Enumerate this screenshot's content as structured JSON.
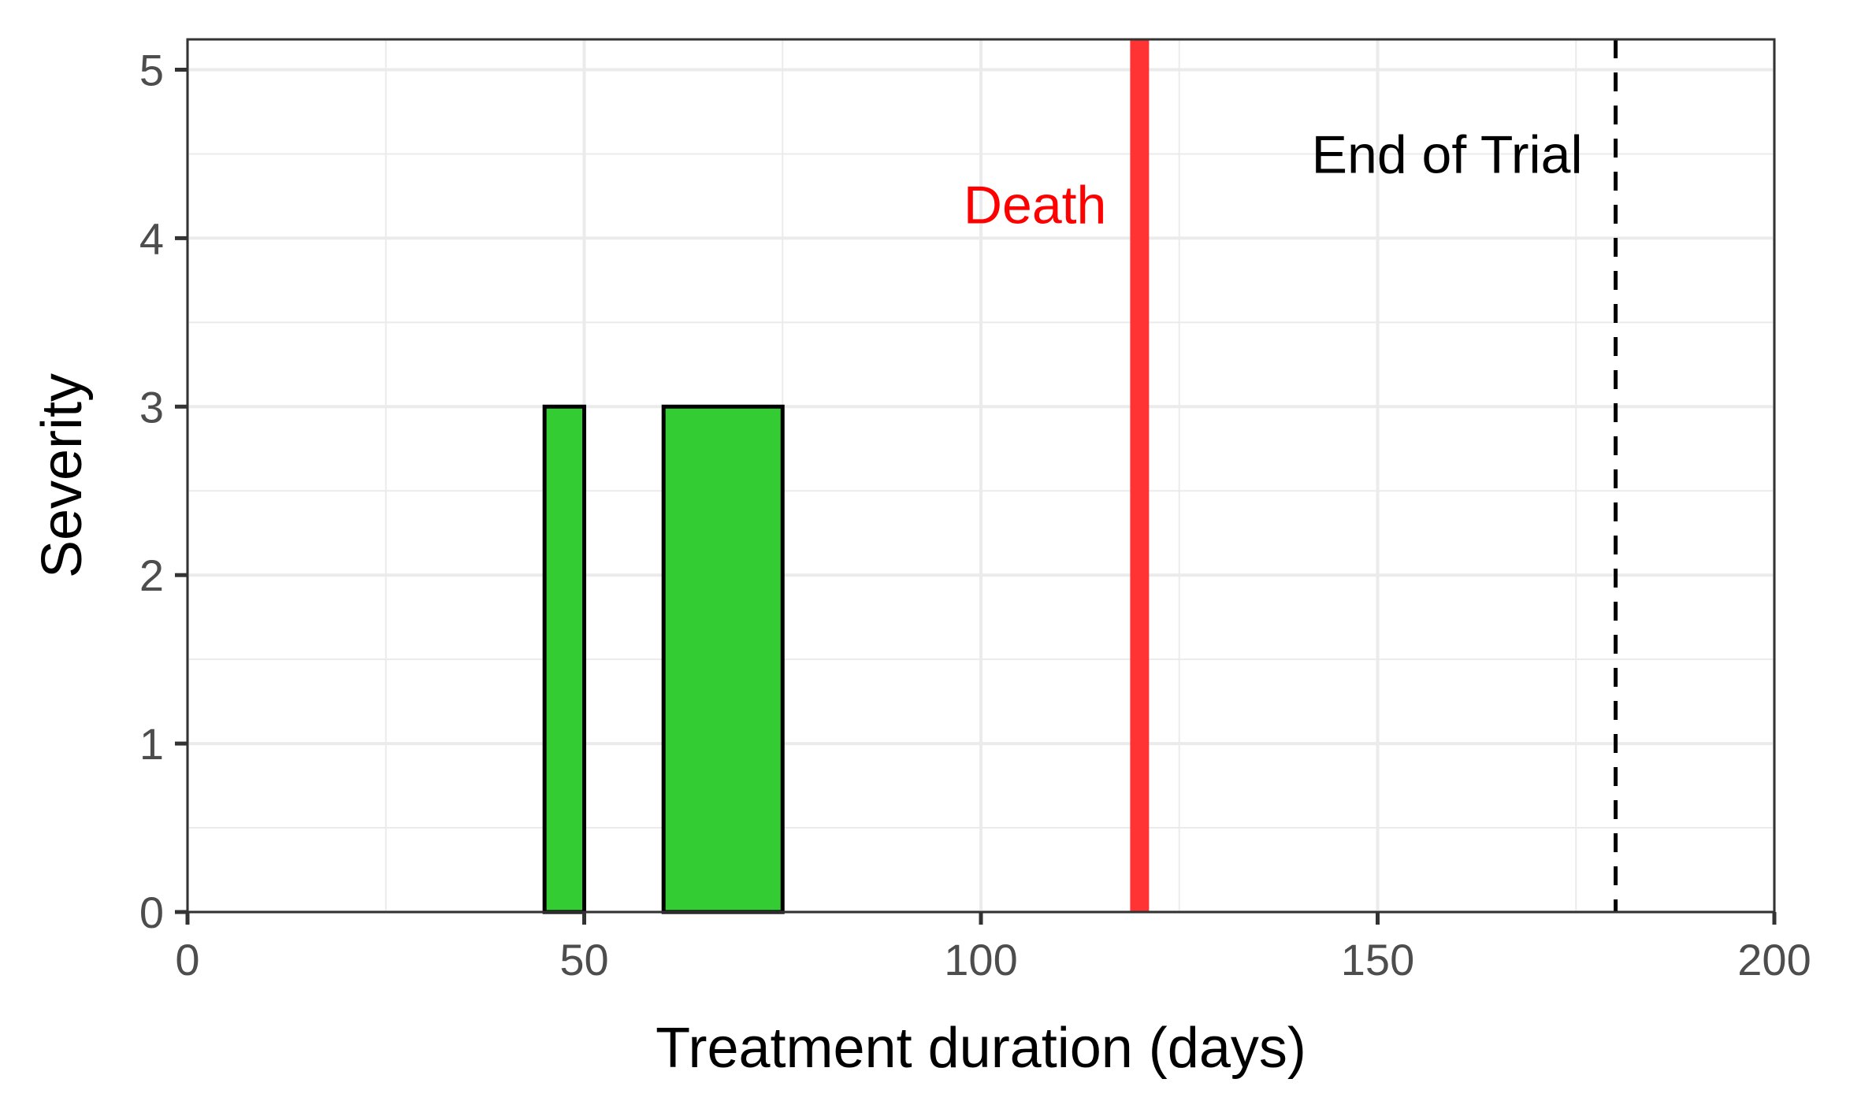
{
  "chart_data": {
    "type": "bar",
    "xlabel": "Treatment duration (days)",
    "ylabel": "Severity",
    "xlim": [
      0,
      200
    ],
    "ylim": [
      0,
      5.18
    ],
    "x_ticks": [
      0,
      50,
      100,
      150,
      200
    ],
    "x_minor_ticks": [
      25,
      75,
      125,
      175
    ],
    "y_ticks": [
      0,
      1,
      2,
      3,
      4,
      5
    ],
    "y_minor_ticks": [
      0.5,
      1.5,
      2.5,
      3.5,
      4.5
    ],
    "x_tick_labels": [
      "0",
      "50",
      "100",
      "150",
      "200"
    ],
    "y_tick_labels": [
      "0",
      "1",
      "2",
      "3",
      "4",
      "5"
    ],
    "grid": true,
    "bars": [
      {
        "x_start": 45,
        "x_end": 50,
        "value": 3
      },
      {
        "x_start": 60,
        "x_end": 75,
        "value": 3
      }
    ],
    "bar_color": "#33cc33",
    "reference_lines": [
      {
        "x": 120,
        "label": "Death",
        "color": "#ff3333",
        "label_color": "#ff0000",
        "style": "solid",
        "label_y": 4.2
      },
      {
        "x": 180,
        "label": "End of Trial",
        "color": "#000000",
        "label_color": "#000000",
        "style": "dashed",
        "label_y": 4.5
      }
    ]
  }
}
